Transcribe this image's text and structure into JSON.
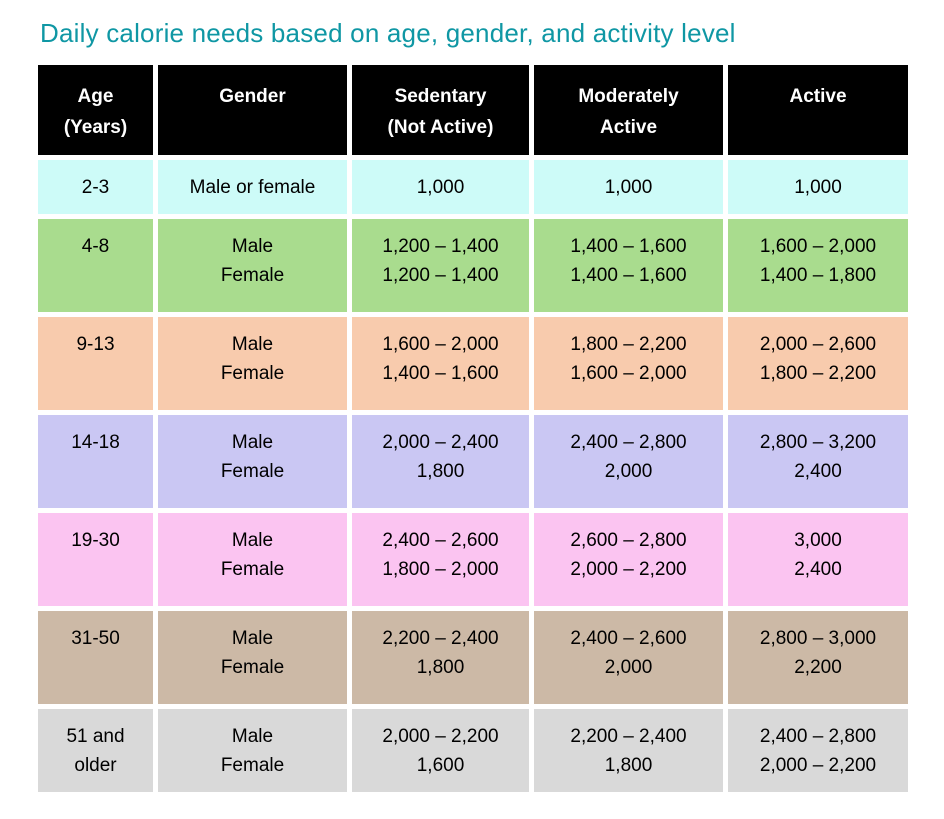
{
  "title": {
    "text": "Daily calorie needs based on age, gender, and activity level",
    "color": "#0F97A4"
  },
  "table": {
    "header_bg": "#000000",
    "header_text_color": "#FFFFFF",
    "headers": [
      "Age\n(Years)",
      "Gender",
      "Sedentary\n(Not Active)",
      "Moderately\nActive",
      "Active"
    ],
    "rows": [
      {
        "age": "2-3",
        "gender": "Male or female",
        "sedentary": "1,000",
        "moderately_active": "1,000",
        "active": "1,000",
        "bg": "#CDFBF8"
      },
      {
        "age": "4-8",
        "gender": "Male\nFemale",
        "sedentary": "1,200 – 1,400\n1,200 – 1,400",
        "moderately_active": "1,400 – 1,600\n1,400 – 1,600",
        "active": "1,600 – 2,000\n1,400 – 1,800",
        "bg": "#A9DC8E"
      },
      {
        "age": "9-13",
        "gender": "Male\nFemale",
        "sedentary": "1,600 – 2,000\n1,400 – 1,600",
        "moderately_active": "1,800 – 2,200\n1,600 – 2,000",
        "active": "2,000 – 2,600\n1,800 – 2,200",
        "bg": "#F8CBAD"
      },
      {
        "age": "14-18",
        "gender": "Male\nFemale",
        "sedentary": "2,000 – 2,400\n1,800",
        "moderately_active": "2,400 – 2,800\n2,000",
        "active": "2,800 – 3,200\n2,400",
        "bg": "#CAC7F3"
      },
      {
        "age": "19-30",
        "gender": "Male\nFemale",
        "sedentary": "2,400 – 2,600\n1,800 – 2,000",
        "moderately_active": "2,600 – 2,800\n2,000 – 2,200",
        "active": "3,000\n2,400",
        "bg": "#FBC4F1"
      },
      {
        "age": "31-50",
        "gender": "Male\nFemale",
        "sedentary": "2,200 – 2,400\n1,800",
        "moderately_active": "2,400 – 2,600\n2,000",
        "active": "2,800 – 3,000\n2,200",
        "bg": "#CCB9A6"
      },
      {
        "age": "51 and\nolder",
        "gender": "Male\nFemale",
        "sedentary": "2,000 – 2,200\n1,600",
        "moderately_active": "2,200 – 2,400\n1,800",
        "active": "2,400 – 2,800\n2,000 – 2,200",
        "bg": "#D9D9D9"
      }
    ]
  }
}
